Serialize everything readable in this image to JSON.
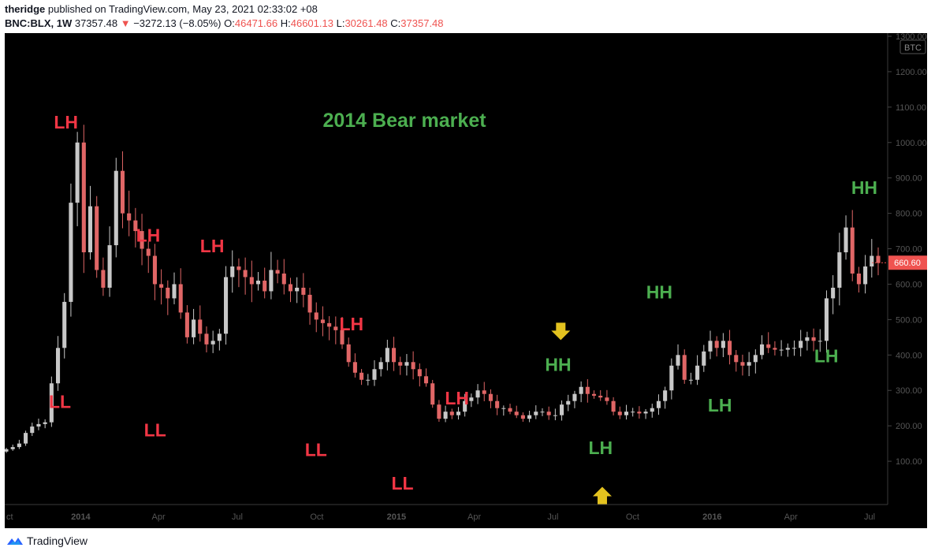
{
  "header": {
    "publisher": "theridge",
    "published_text": "published on TradingView.com, May 23, 2021 02:33:02 +08",
    "symbol": "BNC:BLX, 1W",
    "last": "37357.48",
    "change_arrow": "▼",
    "change": "−3272.13 (−8.05%)",
    "o_label": "O:",
    "o_val": "46471.66",
    "h_label": "H:",
    "h_val": "46601.13",
    "l_label": "L:",
    "l_val": "30261.48",
    "c_label": "C:",
    "c_val": "37357.48"
  },
  "footer": {
    "brand": "TradingView"
  },
  "colors": {
    "background": "#000000",
    "up_candle": "#c8c8c8",
    "down_candle": "#e06666",
    "red_label": "#f23645",
    "green_label": "#4caf50",
    "arrow": "#e3c21f",
    "axis_text": "#555555"
  },
  "chart_data": {
    "type": "candlestick",
    "title": "2014 Bear market",
    "currency_badge": "BTC",
    "last_price_label": "660.60",
    "ylim": [
      0,
      1300
    ],
    "y_ticks": [
      "1300.00",
      "1200.00",
      "1100.00",
      "1000.00",
      "900.00",
      "800.00",
      "700.00",
      "600.00",
      "500.00",
      "400.00",
      "300.00",
      "200.00",
      "100.00"
    ],
    "x_ticks": [
      "ct",
      "2014",
      "Apr",
      "Jul",
      "Oct",
      "2015",
      "Apr",
      "Jul",
      "Oct",
      "2016",
      "Apr",
      "Jul"
    ],
    "week_range": [
      "2013-10-07",
      "2016-07-11"
    ],
    "candles_close": [
      134,
      140,
      150,
      180,
      198,
      205,
      210,
      320,
      420,
      550,
      830,
      1000,
      690,
      820,
      640,
      590,
      710,
      920,
      800,
      780,
      750,
      700,
      680,
      600,
      590,
      560,
      600,
      520,
      450,
      500,
      460,
      430,
      440,
      460,
      620,
      650,
      640,
      620,
      600,
      610,
      580,
      640,
      630,
      600,
      580,
      590,
      570,
      520,
      500,
      490,
      480,
      470,
      430,
      380,
      350,
      330,
      330,
      360,
      380,
      420,
      380,
      370,
      380,
      360,
      340,
      320,
      260,
      220,
      240,
      230,
      240,
      270,
      280,
      300,
      290,
      270,
      250,
      250,
      240,
      230,
      220,
      230,
      240,
      240,
      230,
      230,
      260,
      270,
      290,
      310,
      290,
      285,
      280,
      270,
      240,
      230,
      240,
      240,
      235,
      240,
      250,
      270,
      300,
      370,
      400,
      330,
      330,
      370,
      410,
      440,
      420,
      440,
      400,
      380,
      370,
      380,
      400,
      430,
      420,
      415,
      415,
      420,
      420,
      440,
      450,
      440,
      440,
      560,
      590,
      690,
      760,
      630,
      600,
      650,
      680,
      660
    ],
    "annotations": [
      {
        "text": "LH",
        "color": "red",
        "date": "2013-12-15",
        "price": 1040
      },
      {
        "text": "LL",
        "color": "red",
        "date": "2013-12-08",
        "price": 250
      },
      {
        "text": "LH",
        "color": "red",
        "date": "2014-03-20",
        "price": 720
      },
      {
        "text": "LL",
        "color": "red",
        "date": "2014-03-28",
        "price": 170
      },
      {
        "text": "LH",
        "color": "red",
        "date": "2014-06-02",
        "price": 690
      },
      {
        "text": "LL",
        "color": "red",
        "date": "2014-09-30",
        "price": 115
      },
      {
        "text": "LH",
        "color": "red",
        "date": "2014-11-10",
        "price": 470
      },
      {
        "text": "LL",
        "color": "red",
        "date": "2015-01-08",
        "price": 20
      },
      {
        "text": "LH",
        "color": "red",
        "date": "2015-03-12",
        "price": 260
      },
      {
        "text": "HH",
        "color": "green",
        "date": "2015-07-07",
        "price": 355
      },
      {
        "text": "LH",
        "color": "green",
        "date": "2015-08-25",
        "price": 120
      },
      {
        "text": "HH",
        "color": "green",
        "date": "2015-11-01",
        "price": 560
      },
      {
        "text": "LH",
        "color": "green",
        "date": "2016-01-10",
        "price": 240
      },
      {
        "text": "LH",
        "color": "green",
        "date": "2016-05-12",
        "price": 380
      },
      {
        "text": "HH",
        "color": "green",
        "date": "2016-06-25",
        "price": 855
      }
    ],
    "arrows": [
      {
        "direction": "down",
        "date": "2015-07-10",
        "price": 460
      },
      {
        "direction": "up",
        "date": "2015-08-27",
        "price": 10
      }
    ]
  }
}
